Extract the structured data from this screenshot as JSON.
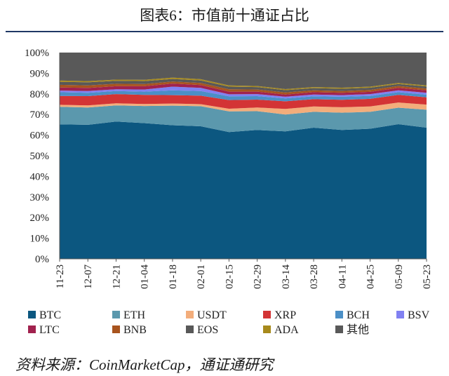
{
  "title": "图表6：市值前十通证占比",
  "source": "资料来源：CoinMarketCap，通证通研究",
  "colors": {
    "BTC": "#0c5780",
    "ETH": "#5b98ad",
    "USDT": "#f3ad7b",
    "XRP": "#d33435",
    "BCH": "#4b8fc6",
    "BSV": "#8181f2",
    "LTC": "#a1224e",
    "BNB": "#a8541e",
    "EOS": "#585858",
    "ADA": "#a78a1c",
    "其他": "#595959"
  },
  "chart_data": {
    "type": "area",
    "stacked": true,
    "x": [
      "11-23",
      "12-07",
      "12-21",
      "01-04",
      "01-18",
      "02-01",
      "02-15",
      "02-29",
      "03-14",
      "03-28",
      "04-11",
      "04-25",
      "05-09",
      "05-23"
    ],
    "x_note_interval": "two-week points",
    "ylim": [
      0,
      100
    ],
    "yticks": [
      "0%",
      "10%",
      "20%",
      "30%",
      "40%",
      "50%",
      "60%",
      "70%",
      "80%",
      "90%",
      "100%"
    ],
    "legend_position": "bottom",
    "series": [
      {
        "name": "BTC",
        "values": [
          65.2,
          65.0,
          66.6,
          65.8,
          64.8,
          64.3,
          61.5,
          62.5,
          61.8,
          63.6,
          62.5,
          63.1,
          65.3,
          63.6
        ]
      },
      {
        "name": "ETH",
        "values": [
          8.5,
          8.4,
          7.8,
          8.3,
          9.5,
          9.7,
          10.0,
          9.1,
          8.2,
          7.7,
          8.4,
          8.2,
          8.0,
          8.7
        ]
      },
      {
        "name": "USDT",
        "values": [
          1.0,
          1.0,
          1.0,
          1.0,
          1.0,
          1.0,
          1.3,
          1.8,
          2.7,
          2.6,
          2.6,
          2.6,
          2.5,
          2.5
        ]
      },
      {
        "name": "XRP",
        "values": [
          4.3,
          4.5,
          4.5,
          4.4,
          4.1,
          4.1,
          4.2,
          3.8,
          3.7,
          3.5,
          3.6,
          3.7,
          3.7,
          3.5
        ]
      },
      {
        "name": "BCH",
        "values": [
          1.8,
          1.6,
          1.5,
          1.6,
          2.3,
          2.3,
          1.8,
          1.7,
          1.4,
          1.4,
          1.5,
          1.4,
          1.3,
          1.3
        ]
      },
      {
        "name": "BSV",
        "values": [
          0.8,
          0.9,
          0.8,
          1.0,
          1.8,
          1.5,
          1.0,
          1.0,
          0.8,
          0.9,
          0.8,
          0.9,
          0.9,
          0.9
        ]
      },
      {
        "name": "LTC",
        "values": [
          1.5,
          1.5,
          1.5,
          1.6,
          1.5,
          1.4,
          1.3,
          1.2,
          1.1,
          1.1,
          1.1,
          1.1,
          1.2,
          1.2
        ]
      },
      {
        "name": "BNB",
        "values": [
          1.3,
          1.2,
          1.2,
          1.1,
          1.0,
          1.0,
          1.1,
          1.0,
          1.0,
          0.9,
          0.9,
          0.9,
          0.9,
          0.9
        ]
      },
      {
        "name": "EOS",
        "values": [
          1.4,
          1.5,
          1.4,
          1.4,
          1.2,
          1.2,
          1.3,
          1.2,
          1.1,
          1.1,
          1.1,
          1.1,
          1.0,
          1.0
        ]
      },
      {
        "name": "ADA",
        "values": [
          0.7,
          0.6,
          0.6,
          0.6,
          0.7,
          0.6,
          0.6,
          0.5,
          0.5,
          0.5,
          0.5,
          0.5,
          0.5,
          0.5
        ]
      },
      {
        "name": "其他",
        "values": [
          13.5,
          13.8,
          13.1,
          13.2,
          12.1,
          12.9,
          15.9,
          16.2,
          17.7,
          16.7,
          17.0,
          16.5,
          14.7,
          15.9
        ]
      }
    ]
  }
}
